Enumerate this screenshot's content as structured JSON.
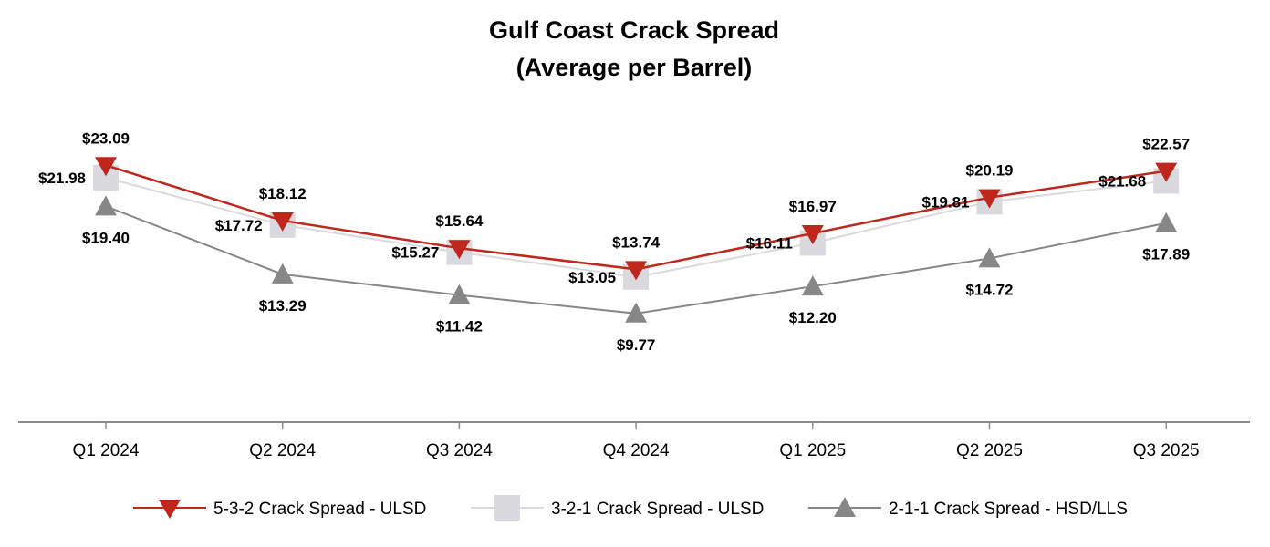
{
  "chart_data": {
    "type": "line",
    "title": "Gulf Coast Crack Spread",
    "subtitle": "(Average per Barrel)",
    "xlabel": "",
    "ylabel": "",
    "categories": [
      "Q1 2024",
      "Q2 2024",
      "Q3 2024",
      "Q4 2024",
      "Q1 2025",
      "Q2 2025",
      "Q3 2025"
    ],
    "ylim": [
      0,
      30
    ],
    "grid": false,
    "legend_position": "bottom",
    "series": [
      {
        "name": "5-3-2 Crack Spread - ULSD",
        "color": "#C0271C",
        "marker": "triangle-down",
        "label_position": "above",
        "values": [
          23.09,
          18.12,
          15.64,
          13.74,
          16.97,
          20.19,
          22.57
        ],
        "labels": [
          "$23.09",
          "$18.12",
          "$15.64",
          "$13.74",
          "$16.97",
          "$20.19",
          "$22.57"
        ]
      },
      {
        "name": "3-2-1 Crack Spread - ULSD",
        "color": "#D9D9DE",
        "marker": "square",
        "label_position": "left",
        "values": [
          21.98,
          17.72,
          15.27,
          13.05,
          16.11,
          19.81,
          21.68
        ],
        "labels": [
          "$21.98",
          "$17.72",
          "$15.27",
          "$13.05",
          "$16.11",
          "$19.81",
          "$21.68"
        ]
      },
      {
        "name": "2-1-1 Crack Spread - HSD/LLS",
        "color": "#878787",
        "marker": "triangle-up",
        "label_position": "below",
        "values": [
          19.4,
          13.29,
          11.42,
          9.77,
          12.2,
          14.72,
          17.89
        ],
        "labels": [
          "$19.40",
          "$13.29",
          "$11.42",
          "$9.77",
          "$12.20",
          "$14.72",
          "$17.89"
        ]
      }
    ],
    "axis_color": "#8C8C8C"
  }
}
